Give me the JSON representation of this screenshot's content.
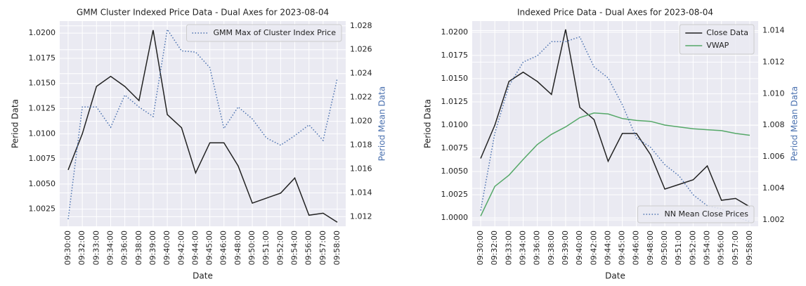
{
  "chart_data": [
    {
      "type": "line",
      "title": "GMM Cluster Indexed Price Data - Dual Axes for 2023-08-04",
      "xlabel": "Date",
      "ylabel": "Period  Data",
      "y2label": "Period Mean Data",
      "y2label_color": "#4c72b0",
      "categories": [
        "09:30:00",
        "09:32:00",
        "09:33:00",
        "09:34:00",
        "09:36:00",
        "09:38:00",
        "09:39:00",
        "09:40:00",
        "09:42:00",
        "09:44:00",
        "09:45:00",
        "09:46:00",
        "09:48:00",
        "09:50:00",
        "09:51:00",
        "09:52:00",
        "09:54:00",
        "09:56:00",
        "09:57:00",
        "09:58:00"
      ],
      "series": [
        {
          "color": "#222222",
          "style": "solid",
          "axis": "y",
          "values": [
            1.0064,
            1.01,
            1.0147,
            1.0157,
            1.0147,
            1.0133,
            1.0203,
            1.0119,
            1.0106,
            1.0061,
            1.0091,
            1.0091,
            1.0068,
            1.0031,
            1.0036,
            1.0041,
            1.0056,
            1.0019,
            1.0021,
            1.0012
          ]
        },
        {
          "name": "GMM Max of Cluster Index Price",
          "color": "#4c72b0",
          "style": "dotted",
          "axis": "y2",
          "values": [
            1.0118,
            1.0212,
            1.0212,
            1.0195,
            1.0222,
            1.0212,
            1.0204,
            1.0277,
            1.0259,
            1.0258,
            1.0245,
            1.0194,
            1.0212,
            1.0202,
            1.0186,
            1.018,
            1.0188,
            1.0197,
            1.0184,
            1.0236
          ]
        }
      ],
      "ylim": [
        1.0008,
        1.0212
      ],
      "yticks": [
        1.0025,
        {
          "value": 1.005,
          "label": "1.0050"
        },
        1.0075,
        {
          "value": 1.01,
          "label": "1.0100"
        },
        1.0125,
        {
          "value": 1.015,
          "label": "1.0150"
        },
        1.0175,
        {
          "value": 1.02,
          "label": "1.0200"
        }
      ],
      "y2lim": [
        1.0112,
        1.0284
      ],
      "y2ticks": [
        1.012,
        1.014,
        1.016,
        1.018,
        {
          "value": 1.02,
          "label": "1.020"
        },
        1.022,
        1.024,
        1.026,
        1.028
      ],
      "grid": true,
      "legend2": "upper right"
    },
    {
      "type": "line",
      "title": "Indexed Price Data - Dual Axes for 2023-08-04",
      "xlabel": "Date",
      "ylabel": "Period Data",
      "y2label": "Period Mean Data",
      "y2label_color": "#4c72b0",
      "categories": [
        "09:30:00",
        "09:32:00",
        "09:33:00",
        "09:34:00",
        "09:36:00",
        "09:38:00",
        "09:39:00",
        "09:40:00",
        "09:42:00",
        "09:44:00",
        "09:45:00",
        "09:46:00",
        "09:48:00",
        "09:50:00",
        "09:51:00",
        "09:52:00",
        "09:54:00",
        "09:56:00",
        "09:57:00",
        "09:58:00"
      ],
      "series": [
        {
          "name": "Close Data",
          "color": "#222222",
          "style": "solid",
          "axis": "y",
          "values": [
            1.0064,
            1.01,
            1.0147,
            1.0157,
            1.0147,
            1.0133,
            1.0203,
            1.0119,
            1.0106,
            1.0061,
            1.0091,
            1.0091,
            1.0068,
            1.0031,
            1.0036,
            1.0041,
            1.0056,
            1.0019,
            1.0021,
            1.0012
          ]
        },
        {
          "name": "VWAP",
          "color": "#55a868",
          "style": "solid",
          "axis": "y",
          "values": [
            1.0002,
            1.0034,
            1.0046,
            1.0063,
            1.0079,
            1.009,
            1.0098,
            1.0108,
            1.0113,
            1.0112,
            1.0107,
            1.0105,
            1.0104,
            1.01,
            1.0098,
            1.0096,
            1.0095,
            1.0094,
            1.0091,
            1.0089
          ]
        },
        {
          "name": "NN Mean Close Prices",
          "color": "#4c72b0",
          "style": "dotted",
          "axis": "y2",
          "values": [
            1.0026,
            1.0075,
            1.0105,
            1.012,
            1.0124,
            1.0133,
            1.0133,
            1.0136,
            1.0117,
            1.011,
            1.0093,
            1.0072,
            1.0066,
            1.0055,
            1.0048,
            1.0036,
            1.0029,
            1.0027,
            1.0022,
            1.0019
          ]
        }
      ],
      "ylim": [
        0.9991,
        1.0212
      ],
      "yticks": [
        {
          "value": 1.0,
          "label": "1.0000"
        },
        1.0025,
        {
          "value": 1.005,
          "label": "1.0050"
        },
        1.0075,
        {
          "value": 1.01,
          "label": "1.0100"
        },
        1.0125,
        {
          "value": 1.015,
          "label": "1.0150"
        },
        1.0175,
        {
          "value": 1.02,
          "label": "1.0200"
        }
      ],
      "y2lim": [
        1.0016,
        1.0146
      ],
      "y2ticks": [
        1.002,
        1.004,
        1.006,
        1.008,
        {
          "value": 1.01,
          "label": "1.010"
        },
        1.012,
        1.014
      ],
      "grid": true,
      "legend": "upper right",
      "legend2": "lower right"
    }
  ]
}
